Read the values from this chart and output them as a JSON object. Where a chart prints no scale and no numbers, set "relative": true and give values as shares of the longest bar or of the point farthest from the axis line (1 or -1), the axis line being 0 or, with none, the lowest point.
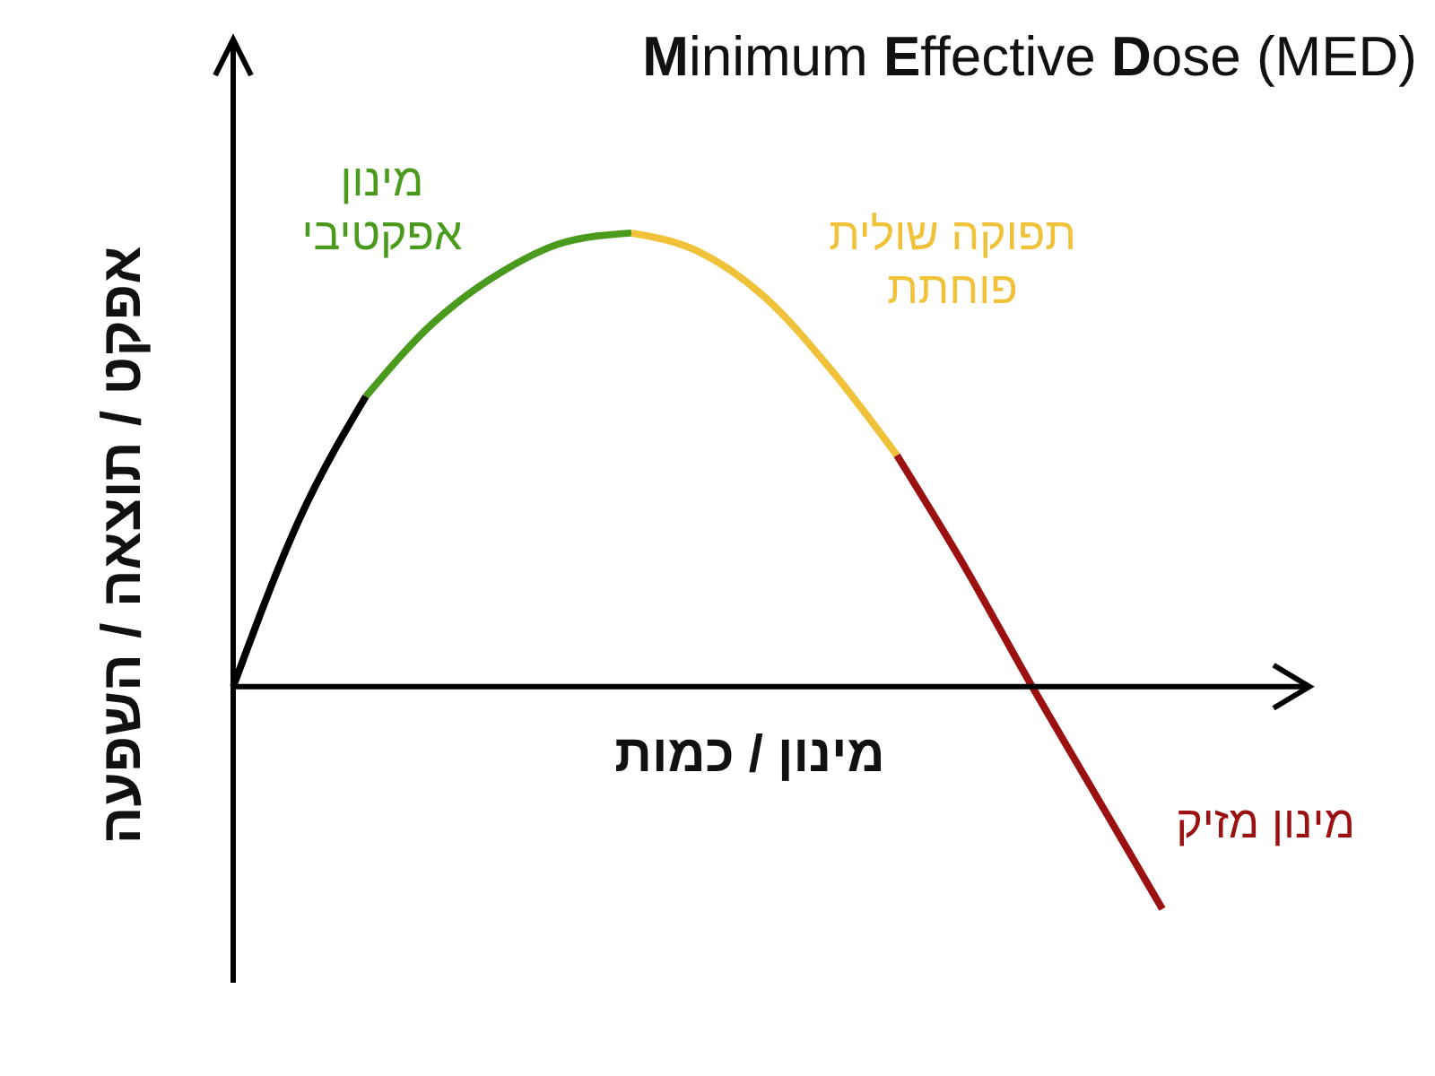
{
  "chart_data": {
    "type": "line",
    "title": "Minimum Effective Dose (MED)",
    "xlabel": "מינון / כמות",
    "ylabel": "אפקט / תוצאה / השפעה",
    "relative": true,
    "marker": "none",
    "line_style": "solid",
    "categories": [
      null,
      null,
      null,
      null,
      null,
      null,
      null,
      null,
      null,
      null,
      null,
      null,
      null,
      null,
      null
    ],
    "series": [
      {
        "color": "#000000",
        "values": [
          0,
          0.37,
          0.64,
          null,
          null,
          null,
          null,
          null,
          null,
          null,
          null,
          null,
          null,
          null,
          null
        ]
      },
      {
        "name": "מינון אפקטיבי",
        "color": "#4a9a1e",
        "values": [
          null,
          null,
          0.64,
          0.8,
          0.91,
          0.98,
          1,
          null,
          null,
          null,
          null,
          null,
          null,
          null,
          null
        ]
      },
      {
        "name": "תפוקה שולית פוחתת",
        "color": "#f0c23a",
        "values": [
          null,
          null,
          null,
          null,
          null,
          null,
          1,
          0.96,
          0.86,
          0.7,
          0.51,
          null,
          null,
          null,
          null
        ]
      },
      {
        "name": "מינון מזיק",
        "color": "#9b1010",
        "values": [
          null,
          null,
          null,
          null,
          null,
          null,
          null,
          null,
          null,
          null,
          0.51,
          0.27,
          0.01,
          -0.24,
          -0.49
        ]
      }
    ]
  }
}
